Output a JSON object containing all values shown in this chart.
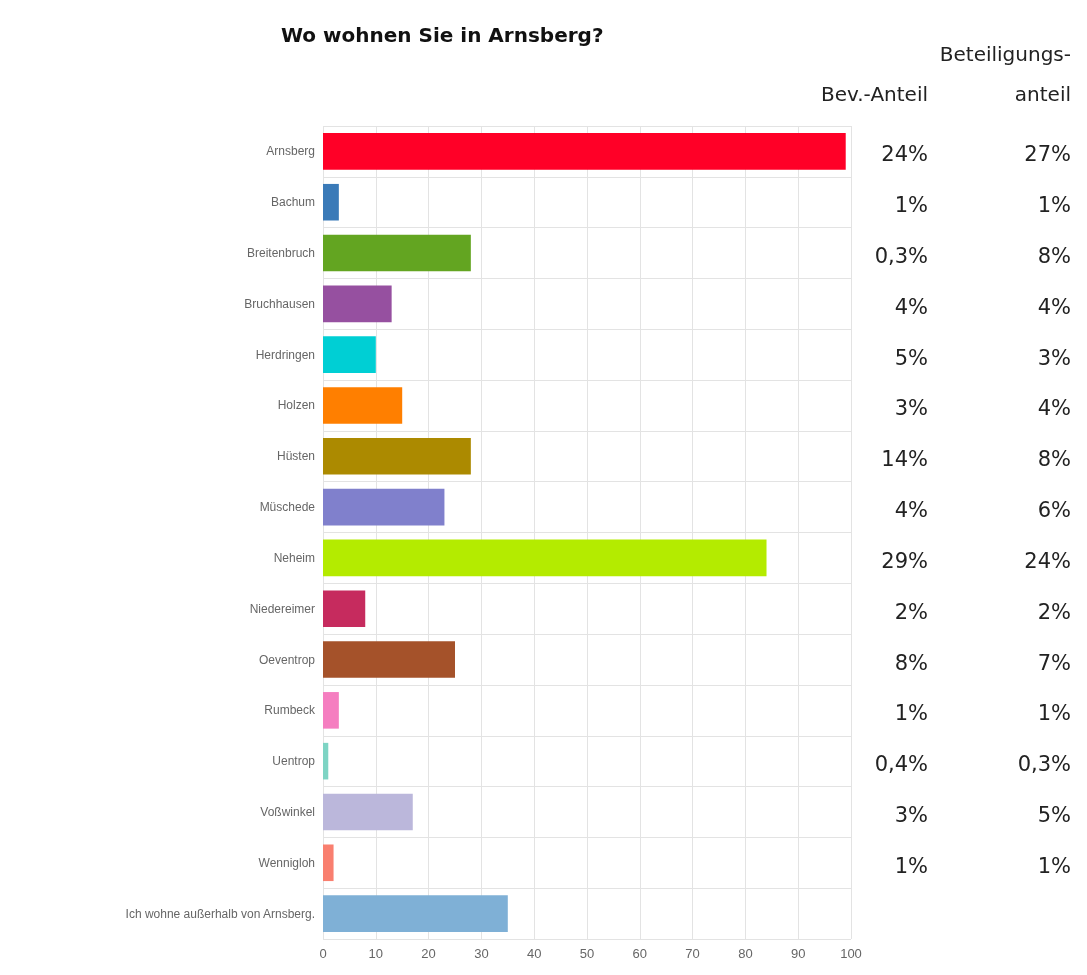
{
  "chart_data": {
    "type": "bar",
    "orientation": "horizontal",
    "title": "Wo wohnen Sie in Arnsberg?",
    "categories": [
      "Arnsberg",
      "Bachum",
      "Breitenbruch",
      "Bruchhausen",
      "Herdringen",
      "Holzen",
      "Hüsten",
      "Müschede",
      "Neheim",
      "Niedereimer",
      "Oeventrop",
      "Rumbeck",
      "Uentrop",
      "Voßwinkel",
      "Wennigloh",
      "Ich wohne außerhalb von Arnsberg."
    ],
    "values": [
      99,
      3,
      28,
      13,
      10,
      15,
      28,
      23,
      84,
      8,
      25,
      3,
      1,
      17,
      2,
      35
    ],
    "colors": [
      "#ff0027",
      "#3a7ab8",
      "#63a521",
      "#9650a0",
      "#00cfd4",
      "#ff7f00",
      "#ac8a00",
      "#8080cc",
      "#b4eb00",
      "#c62b5e",
      "#a5522a",
      "#f57ec0",
      "#7ed4c4",
      "#bbb7db",
      "#f97f6f",
      "#7fb0d6"
    ],
    "xlim": [
      0,
      100
    ],
    "xticks": [
      0,
      10,
      20,
      30,
      40,
      50,
      60,
      70,
      80,
      90,
      100
    ],
    "grid": true,
    "annotations": [
      "Bev.-Anteil",
      "Beteiligungs-\nanteil",
      "24%",
      "27%",
      "1%",
      "1%",
      "0,3%",
      "8%",
      "4%",
      "4%",
      "5%",
      "3%",
      "3%",
      "4%",
      "14%",
      "8%",
      "4%",
      "6%",
      "29%",
      "24%",
      "2%",
      "2%",
      "8%",
      "7%",
      "1%",
      "1%",
      "0,4%",
      "0,3%",
      "3%",
      "5%",
      "1%",
      "1%"
    ]
  }
}
